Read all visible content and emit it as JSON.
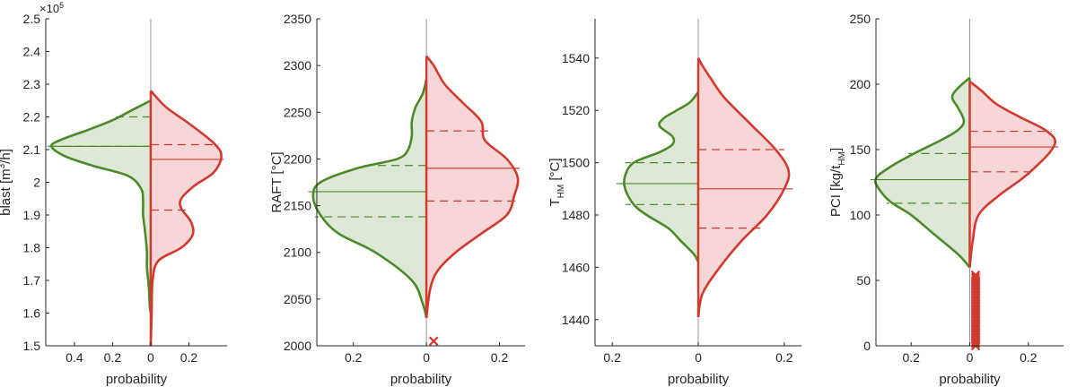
{
  "figure": {
    "x_label": "probability",
    "colors": {
      "left": "#4a8a2a",
      "left_fill": "#dde9d6",
      "right": "#d2392f",
      "right_fill": "#f7d6d8",
      "axis": "#262626",
      "center": "#999999"
    }
  },
  "chart_data": [
    {
      "type": "violin",
      "ylabel": "blast [m³/h]",
      "ylabel_main": "blast [m",
      "ylabel_sup": "3",
      "ylabel_tail": "/h]",
      "y_scale_note": "×10",
      "y_scale_exp": "5",
      "ylim": [
        1.5,
        2.5
      ],
      "yticks": [
        1.5,
        1.6,
        1.7,
        1.8,
        1.9,
        2.0,
        2.1,
        2.2,
        2.3,
        2.4,
        2.5
      ],
      "ytick_labels": [
        "1.5",
        "1.6",
        "1.7",
        "1.8",
        "1.9",
        "2",
        "2.1",
        "2.2",
        "2.3",
        "2.4",
        "2.5"
      ],
      "xlim": [
        -0.55,
        0.4
      ],
      "xticks": [
        -0.4,
        -0.2,
        0,
        0.2
      ],
      "xtick_labels": [
        "0.4",
        "0.2",
        "0",
        "0.2"
      ],
      "left": {
        "density": [
          [
            1.6,
            0
          ],
          [
            1.62,
            0.005
          ],
          [
            1.68,
            0.01
          ],
          [
            1.74,
            0.02
          ],
          [
            1.79,
            0.02
          ],
          [
            1.85,
            0.03
          ],
          [
            1.9,
            0.04
          ],
          [
            1.94,
            0.04
          ],
          [
            1.98,
            0.05
          ],
          [
            2.02,
            0.12
          ],
          [
            2.05,
            0.3
          ],
          [
            2.08,
            0.45
          ],
          [
            2.11,
            0.52
          ],
          [
            2.13,
            0.47
          ],
          [
            2.16,
            0.33
          ],
          [
            2.19,
            0.2
          ],
          [
            2.22,
            0.1
          ],
          [
            2.25,
            0
          ]
        ],
        "median": 2.11,
        "quartiles": [
          2.11,
          2.2
        ]
      },
      "right": {
        "density": [
          [
            1.5,
            0
          ],
          [
            1.6,
            0.005
          ],
          [
            1.7,
            0.01
          ],
          [
            1.76,
            0.04
          ],
          [
            1.8,
            0.16
          ],
          [
            1.84,
            0.22
          ],
          [
            1.88,
            0.21
          ],
          [
            1.92,
            0.16
          ],
          [
            1.95,
            0.16
          ],
          [
            1.99,
            0.23
          ],
          [
            2.03,
            0.33
          ],
          [
            2.08,
            0.37
          ],
          [
            2.12,
            0.33
          ],
          [
            2.18,
            0.2
          ],
          [
            2.23,
            0.08
          ],
          [
            2.28,
            0
          ]
        ],
        "median": 2.07,
        "quartiles": [
          1.915,
          2.115
        ]
      },
      "outliers_right": []
    },
    {
      "type": "violin",
      "ylabel": "RAFT [°C]",
      "ylabel_main": "RAFT [°C]",
      "ylim": [
        2000,
        2350
      ],
      "yticks": [
        2000,
        2050,
        2100,
        2150,
        2200,
        2250,
        2300,
        2350
      ],
      "ytick_labels": [
        "2000",
        "2050",
        "2100",
        "2150",
        "2200",
        "2250",
        "2300",
        "2350"
      ],
      "xlim": [
        -0.3,
        0.27
      ],
      "xticks": [
        -0.2,
        0,
        0.2
      ],
      "xtick_labels": [
        "0.2",
        "0",
        "0.2"
      ],
      "left": {
        "density": [
          [
            2030,
            0
          ],
          [
            2045,
            0.01
          ],
          [
            2070,
            0.04
          ],
          [
            2100,
            0.14
          ],
          [
            2120,
            0.24
          ],
          [
            2140,
            0.29
          ],
          [
            2160,
            0.31
          ],
          [
            2175,
            0.29
          ],
          [
            2190,
            0.19
          ],
          [
            2200,
            0.08
          ],
          [
            2210,
            0.05
          ],
          [
            2225,
            0.04
          ],
          [
            2240,
            0.04
          ],
          [
            2255,
            0.03
          ],
          [
            2270,
            0.01
          ],
          [
            2285,
            0
          ]
        ],
        "median": 2165,
        "quartiles": [
          2138,
          2193
        ]
      },
      "right": {
        "density": [
          [
            2030,
            0
          ],
          [
            2060,
            0.01
          ],
          [
            2080,
            0.03
          ],
          [
            2100,
            0.08
          ],
          [
            2120,
            0.15
          ],
          [
            2140,
            0.22
          ],
          [
            2160,
            0.24
          ],
          [
            2180,
            0.25
          ],
          [
            2200,
            0.22
          ],
          [
            2220,
            0.16
          ],
          [
            2240,
            0.15
          ],
          [
            2260,
            0.1
          ],
          [
            2280,
            0.05
          ],
          [
            2300,
            0.02
          ],
          [
            2310,
            0
          ]
        ],
        "median": 2190,
        "quartiles": [
          2155,
          2230
        ]
      },
      "outliers_right": [
        2005
      ]
    },
    {
      "type": "violin",
      "ylabel": "T_HM [°C]",
      "ylabel_main": "T",
      "ylabel_sub": "HM",
      "ylabel_tail": " [°C]",
      "ylim": [
        1430,
        1555
      ],
      "yticks": [
        1440,
        1460,
        1480,
        1500,
        1520,
        1540
      ],
      "ytick_labels": [
        "1440",
        "1460",
        "1480",
        "1500",
        "1520",
        "1540"
      ],
      "xlim": [
        -0.24,
        0.24
      ],
      "xticks": [
        -0.2,
        0,
        0.2
      ],
      "xtick_labels": [
        "0.2",
        "0",
        "0.2"
      ],
      "left": {
        "density": [
          [
            1462,
            0
          ],
          [
            1465,
            0.01
          ],
          [
            1470,
            0.04
          ],
          [
            1475,
            0.07
          ],
          [
            1480,
            0.12
          ],
          [
            1484,
            0.15
          ],
          [
            1490,
            0.17
          ],
          [
            1495,
            0.17
          ],
          [
            1500,
            0.15
          ],
          [
            1504,
            0.09
          ],
          [
            1507,
            0.06
          ],
          [
            1510,
            0.06
          ],
          [
            1514,
            0.09
          ],
          [
            1517,
            0.08
          ],
          [
            1520,
            0.05
          ],
          [
            1523,
            0.02
          ],
          [
            1527,
            0
          ]
        ],
        "median": 1492,
        "quartiles": [
          1484,
          1500
        ]
      },
      "right": {
        "density": [
          [
            1441,
            0
          ],
          [
            1450,
            0.01
          ],
          [
            1460,
            0.05
          ],
          [
            1470,
            0.1
          ],
          [
            1480,
            0.16
          ],
          [
            1490,
            0.2
          ],
          [
            1497,
            0.21
          ],
          [
            1505,
            0.18
          ],
          [
            1515,
            0.12
          ],
          [
            1525,
            0.06
          ],
          [
            1532,
            0.03
          ],
          [
            1537,
            0.01
          ],
          [
            1540,
            0
          ]
        ],
        "median": 1490,
        "quartiles": [
          1475,
          1505
        ]
      },
      "outliers_right": []
    },
    {
      "type": "violin",
      "ylabel": "PCI [kg/t_HM]",
      "ylabel_main": "PCI [kg/t",
      "ylabel_sub": "HM",
      "ylabel_tail": "]",
      "ylim": [
        0,
        250
      ],
      "yticks": [
        0,
        50,
        100,
        150,
        200,
        250
      ],
      "ytick_labels": [
        "0",
        "50",
        "100",
        "150",
        "200",
        "250"
      ],
      "xlim": [
        -0.32,
        0.32
      ],
      "xticks": [
        -0.2,
        0,
        0.2
      ],
      "xtick_labels": [
        "0.2",
        "0",
        "0.2"
      ],
      "left": {
        "density": [
          [
            60,
            0
          ],
          [
            70,
            0.04
          ],
          [
            85,
            0.12
          ],
          [
            100,
            0.2
          ],
          [
            110,
            0.27
          ],
          [
            120,
            0.31
          ],
          [
            128,
            0.32
          ],
          [
            137,
            0.27
          ],
          [
            147,
            0.19
          ],
          [
            157,
            0.1
          ],
          [
            165,
            0.04
          ],
          [
            172,
            0.02
          ],
          [
            182,
            0.04
          ],
          [
            190,
            0.06
          ],
          [
            197,
            0.04
          ],
          [
            205,
            0
          ]
        ],
        "median": 127,
        "quartiles": [
          109,
          147
        ]
      },
      "right": {
        "density": [
          [
            60,
            0
          ],
          [
            80,
            0.01
          ],
          [
            100,
            0.03
          ],
          [
            115,
            0.1
          ],
          [
            128,
            0.18
          ],
          [
            140,
            0.24
          ],
          [
            150,
            0.28
          ],
          [
            158,
            0.29
          ],
          [
            166,
            0.25
          ],
          [
            175,
            0.17
          ],
          [
            185,
            0.09
          ],
          [
            195,
            0.04
          ],
          [
            202,
            0
          ]
        ],
        "median": 152,
        "quartiles": [
          133,
          164
        ]
      },
      "outliers_right": [
        0,
        2,
        4,
        6,
        8,
        10,
        12,
        14,
        16,
        18,
        20,
        22,
        24,
        26,
        28,
        30,
        32,
        34,
        36,
        38,
        40,
        42,
        44,
        46,
        48,
        50,
        52,
        54
      ]
    }
  ]
}
